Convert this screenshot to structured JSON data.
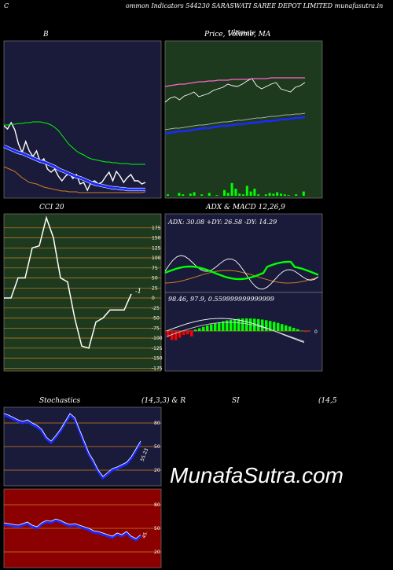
{
  "header": {
    "left_letter": "C",
    "title": "ommon  Indicators 544230  SARASWATI SAREE DEPOT LIMITED munafasutra.in"
  },
  "watermark": "MunafaSutra.com",
  "colors": {
    "panel_dark": "#1a1a3a",
    "panel_green": "#1e3a1e",
    "panel_red": "#8b0000",
    "orange": "#d08020",
    "blue": "#1a2aff",
    "green": "#00ff00",
    "red": "#ff0000"
  },
  "chart_data": [
    {
      "type": "line",
      "name": "bollinger",
      "title": "B",
      "series": [
        {
          "values": [
            92,
            88,
            96,
            87,
            69,
            58,
            72,
            60,
            53,
            60,
            46,
            50,
            37,
            33,
            37,
            28,
            22,
            28,
            32,
            25,
            30,
            18,
            20,
            10,
            20,
            22,
            18,
            20,
            27,
            33,
            22,
            34,
            28,
            20,
            26,
            30,
            22,
            22,
            18,
            20
          ]
        },
        {
          "values": [
            66,
            64,
            62,
            60,
            58,
            57,
            55,
            53,
            51,
            49,
            47,
            46,
            44,
            42,
            40,
            37,
            35,
            33,
            31,
            29,
            27,
            26,
            24,
            22,
            20,
            18,
            17,
            16,
            15,
            14,
            13,
            13,
            12,
            12,
            11,
            11,
            11,
            11,
            11,
            11
          ]
        },
        {
          "values": [
            40,
            38,
            36,
            34,
            30,
            26,
            23,
            20,
            19,
            18,
            16,
            14,
            13,
            12,
            11,
            10,
            9,
            9,
            8,
            8,
            8,
            7,
            7,
            7,
            7,
            7,
            7,
            7,
            7,
            7,
            7,
            7,
            7,
            7,
            7,
            7,
            7,
            7,
            7,
            8
          ]
        },
        {
          "values": [
            93,
            93,
            94,
            94,
            95,
            95,
            96,
            96,
            97,
            97,
            97,
            96,
            95,
            93,
            90,
            86,
            80,
            74,
            68,
            64,
            60,
            57,
            55,
            52,
            50,
            49,
            48,
            47,
            46,
            46,
            45,
            45,
            44,
            44,
            44,
            43,
            43,
            43,
            43,
            43
          ]
        }
      ]
    },
    {
      "type": "line",
      "name": "price-volume-ma",
      "title": "Price,  Volume,  MA",
      "overlap_text": "Ultimate",
      "series": [
        {
          "values": [
            55,
            60,
            62,
            58,
            63,
            65,
            68,
            62,
            64,
            66,
            70,
            72,
            74,
            78,
            76,
            75,
            78,
            82,
            85,
            76,
            72,
            75,
            78,
            80,
            72,
            70,
            68,
            74,
            76,
            80
          ]
        },
        {
          "values": [
            75,
            76,
            77,
            78,
            78,
            79,
            80,
            81,
            81,
            82,
            82,
            83,
            83,
            83,
            84,
            84,
            84,
            84,
            85,
            85,
            85,
            85,
            86,
            86,
            86,
            86,
            86,
            86,
            86,
            86
          ]
        },
        {
          "values": [
            15,
            16,
            17,
            18,
            18,
            19,
            20,
            21,
            22,
            22,
            23,
            24,
            25,
            25,
            26,
            27,
            27,
            28,
            29,
            29,
            30,
            31,
            31,
            32,
            33,
            33,
            34,
            35,
            35,
            36
          ]
        },
        {
          "values": [
            20,
            21,
            22,
            22,
            23,
            24,
            25,
            26,
            26,
            27,
            28,
            29,
            30,
            30,
            31,
            32,
            32,
            33,
            34,
            35,
            35,
            36,
            37,
            37,
            38,
            39,
            39,
            40,
            40,
            41
          ]
        }
      ],
      "volume": [
        2,
        0,
        0,
        4,
        2,
        0,
        3,
        5,
        0,
        2,
        0,
        4,
        0,
        1,
        0,
        8,
        4,
        18,
        10,
        3,
        2,
        14,
        6,
        10,
        2,
        0,
        2,
        4,
        3,
        5,
        3,
        2,
        1,
        0,
        2,
        0,
        6
      ]
    },
    {
      "type": "line",
      "name": "cci",
      "title": "CCI 20",
      "ticks": [
        "175",
        "150",
        "125",
        "100",
        "75",
        "50",
        "25",
        "0",
        "-25",
        "-50",
        "-75",
        "-100",
        "-125",
        "-150",
        "-175"
      ],
      "last_label": "-1",
      "values": [
        0,
        0,
        50,
        50,
        125,
        130,
        200,
        150,
        50,
        40,
        -50,
        -120,
        -125,
        -60,
        -50,
        -30,
        -30,
        -30,
        10
      ]
    },
    {
      "type": "line",
      "name": "adx",
      "title": "ADX  & MACD 12,26,9",
      "readout": "ADX: 30.08  +DY: 26.58  -DY: 14.29",
      "ticks": [
        "0"
      ]
    },
    {
      "type": "bar",
      "name": "macd",
      "readout": "98.46,  97.9,  0.559999999999999"
    },
    {
      "type": "line",
      "name": "stochastics",
      "title": "Stochastics",
      "params": "(14,3,3) & R",
      "ticks": [
        "80",
        "50",
        "20"
      ],
      "last_label": "55.23",
      "values": [
        90,
        88,
        85,
        82,
        80,
        82,
        78,
        75,
        70,
        60,
        55,
        62,
        70,
        80,
        90,
        85,
        70,
        55,
        40,
        30,
        18,
        10,
        15,
        20,
        22,
        25,
        28,
        35,
        45,
        55
      ]
    },
    {
      "type": "line",
      "name": "rsi",
      "title": "SI",
      "params": "(14,5",
      "ticks": [
        "80",
        "50",
        "20"
      ],
      "last_label": "45.",
      "values": [
        55,
        54,
        53,
        52,
        54,
        56,
        52,
        50,
        55,
        58,
        57,
        60,
        58,
        55,
        53,
        54,
        52,
        50,
        48,
        45,
        44,
        42,
        40,
        38,
        42,
        40,
        44,
        38,
        35,
        40
      ]
    }
  ]
}
